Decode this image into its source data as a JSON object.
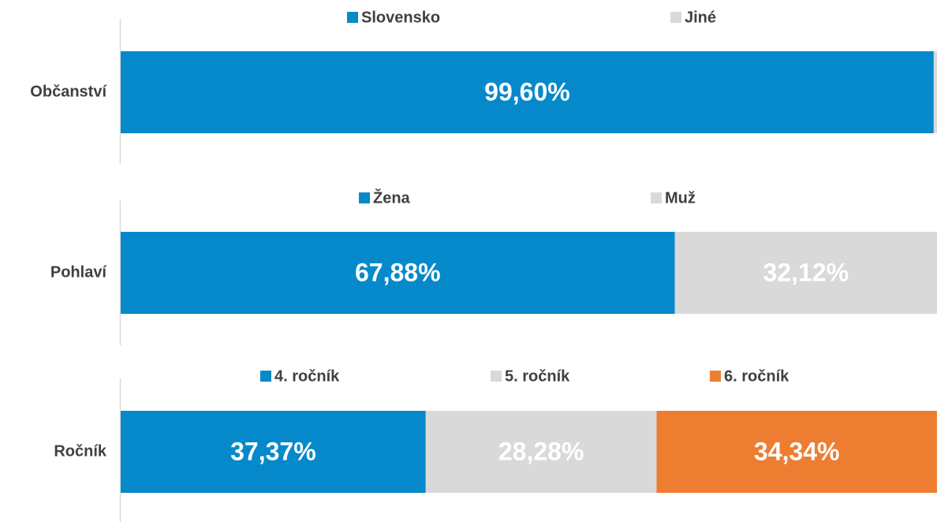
{
  "chart_data": [
    {
      "type": "bar",
      "orientation": "horizontal",
      "stacked": true,
      "categories": [
        "Občanství"
      ],
      "xlim": [
        0,
        100
      ],
      "series": [
        {
          "name": "Slovensko",
          "color": "#0589cb",
          "values": [
            99.6
          ],
          "value_labels": [
            "99,60%"
          ]
        },
        {
          "name": "Jiné",
          "color": "#d9d9d9",
          "values": [
            0.4
          ]
        }
      ]
    },
    {
      "type": "bar",
      "orientation": "horizontal",
      "stacked": true,
      "categories": [
        "Pohlaví"
      ],
      "xlim": [
        0,
        100
      ],
      "series": [
        {
          "name": "Žena",
          "color": "#0589cb",
          "values": [
            67.88
          ],
          "value_labels": [
            "67,88%"
          ]
        },
        {
          "name": "Muž",
          "color": "#d9d9d9",
          "values": [
            32.12
          ],
          "value_labels": [
            "32,12%"
          ]
        }
      ]
    },
    {
      "type": "bar",
      "orientation": "horizontal",
      "stacked": true,
      "categories": [
        "Ročník"
      ],
      "xlim": [
        0,
        100
      ],
      "series": [
        {
          "name": "4. ročník",
          "color": "#0589cb",
          "values": [
            37.37
          ],
          "value_labels": [
            "37,37%"
          ]
        },
        {
          "name": "5. ročník",
          "color": "#d9d9d9",
          "values": [
            28.28
          ],
          "value_labels": [
            "28,28%"
          ]
        },
        {
          "name": "6. ročník",
          "color": "#ed7d31",
          "values": [
            34.34
          ],
          "value_labels": [
            "34,34%"
          ]
        }
      ]
    }
  ]
}
